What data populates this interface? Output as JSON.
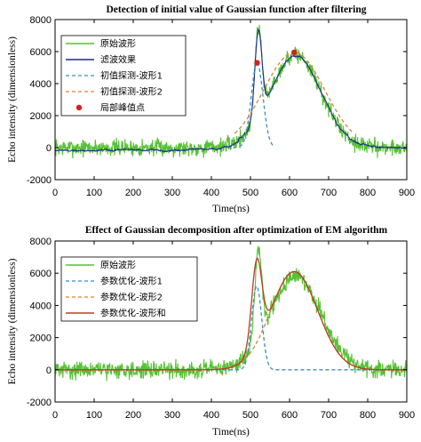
{
  "chart_data": [
    {
      "type": "line",
      "title": "Detection of initial value of Gaussian function after filtering",
      "xlabel": "Time(ns)",
      "ylabel": "Echo intensity (dimensionless)",
      "xlim": [
        0,
        900
      ],
      "ylim": [
        -2000,
        8000
      ],
      "xticks": [
        0,
        100,
        200,
        300,
        400,
        500,
        600,
        700,
        800,
        900
      ],
      "yticks": [
        -2000,
        0,
        2000,
        4000,
        6000,
        8000
      ],
      "grid": false,
      "legend_position": "top-left",
      "series": [
        {
          "name": "原始波形",
          "style": "solid",
          "color": "#55c232",
          "noise": 260,
          "gaussians": [
            [
              5500,
              520,
              9
            ],
            [
              5800,
              615,
              65
            ]
          ],
          "noise_seed": 7
        },
        {
          "name": "滤波效果",
          "style": "solid",
          "color": "#1d2c8c",
          "noise": 45,
          "gaussians": [
            [
              5400,
              520,
              9
            ],
            [
              5750,
              615,
              65
            ]
          ],
          "noise_seed": 19
        },
        {
          "name": "初值探测-波形1",
          "style": "dashed",
          "color": "#3c8cc4",
          "gaussians": [
            [
              5300,
              517,
              15
            ]
          ],
          "x_range": [
            440,
            560
          ]
        },
        {
          "name": "初值探测-波形2",
          "style": "dashed",
          "color": "#d9823c",
          "gaussians": [
            [
              5950,
              612,
              78
            ]
          ],
          "x_range": [
            460,
            760
          ]
        },
        {
          "name": "局部峰值点",
          "style": "marker",
          "color": "#d62020",
          "points": [
            [
              517,
              5300
            ],
            [
              612,
              5950
            ]
          ]
        }
      ]
    },
    {
      "type": "line",
      "title": "Effect of Gaussian decomposition after optimization of EM algorithm",
      "xlabel": "Time(ns)",
      "ylabel": "Echo intensity (dimensionless)",
      "xlim": [
        0,
        900
      ],
      "ylim": [
        -2000,
        8000
      ],
      "xticks": [
        0,
        100,
        200,
        300,
        400,
        500,
        600,
        700,
        800,
        900
      ],
      "yticks": [
        -2000,
        0,
        2000,
        4000,
        6000,
        8000
      ],
      "grid": false,
      "legend_position": "top-left",
      "series": [
        {
          "name": "原始波形",
          "style": "solid",
          "color": "#55c232",
          "noise": 260,
          "gaussians": [
            [
              5500,
              520,
              9
            ],
            [
              5800,
              615,
              65
            ]
          ],
          "noise_seed": 31
        },
        {
          "name": "参数优化-波形1",
          "style": "dashed",
          "color": "#3c8cc4",
          "gaussians": [
            [
              5200,
              516,
              13
            ]
          ]
        },
        {
          "name": "参数优化-波形2",
          "style": "dashed",
          "color": "#d9823c",
          "gaussians": [
            [
              6100,
              612,
              60
            ]
          ]
        },
        {
          "name": "参数优化-波形和",
          "style": "solid",
          "color": "#c0392b",
          "gaussians": [
            [
              5200,
              516,
              13
            ],
            [
              6100,
              612,
              60
            ]
          ]
        }
      ]
    }
  ]
}
